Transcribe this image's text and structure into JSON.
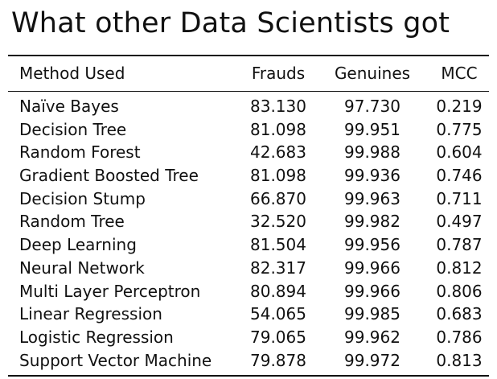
{
  "title": "What other Data Scientists got",
  "table": {
    "headers": {
      "method": "Method Used",
      "frauds": "Frauds",
      "genuines": "Genuines",
      "mcc": "MCC"
    },
    "rows": [
      {
        "method": "Naïve Bayes",
        "frauds": "83.130",
        "genuines": "97.730",
        "mcc": "0.219"
      },
      {
        "method": "Decision Tree",
        "frauds": "81.098",
        "genuines": "99.951",
        "mcc": "0.775"
      },
      {
        "method": "Random Forest",
        "frauds": "42.683",
        "genuines": "99.988",
        "mcc": "0.604"
      },
      {
        "method": "Gradient Boosted Tree",
        "frauds": "81.098",
        "genuines": "99.936",
        "mcc": "0.746"
      },
      {
        "method": "Decision Stump",
        "frauds": "66.870",
        "genuines": "99.963",
        "mcc": "0.711"
      },
      {
        "method": "Random Tree",
        "frauds": "32.520",
        "genuines": "99.982",
        "mcc": "0.497"
      },
      {
        "method": "Deep Learning",
        "frauds": "81.504",
        "genuines": "99.956",
        "mcc": "0.787"
      },
      {
        "method": "Neural Network",
        "frauds": "82.317",
        "genuines": "99.966",
        "mcc": "0.812"
      },
      {
        "method": "Multi Layer Perceptron",
        "frauds": "80.894",
        "genuines": "99.966",
        "mcc": "0.806"
      },
      {
        "method": "Linear Regression",
        "frauds": "54.065",
        "genuines": "99.985",
        "mcc": "0.683"
      },
      {
        "method": "Logistic Regression",
        "frauds": "79.065",
        "genuines": "99.962",
        "mcc": "0.786"
      },
      {
        "method": "Support Vector Machine",
        "frauds": "79.878",
        "genuines": "99.972",
        "mcc": "0.813"
      }
    ]
  }
}
